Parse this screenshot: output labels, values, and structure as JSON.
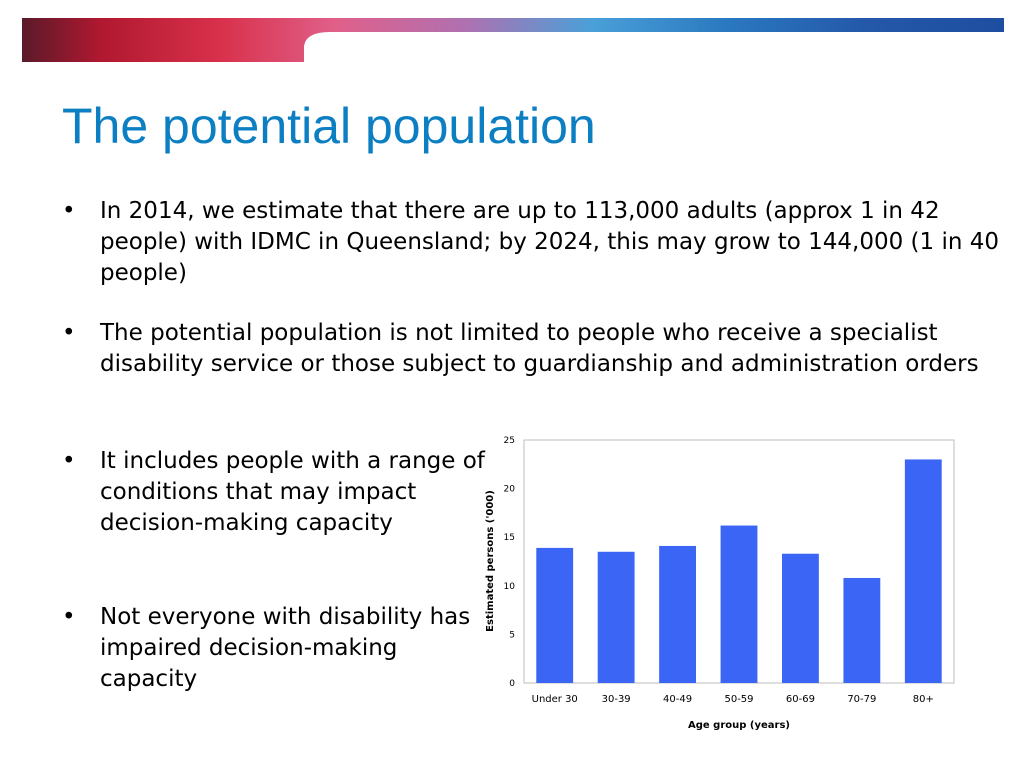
{
  "slide": {
    "title": "The potential population",
    "bullets": [
      {
        "marker": "•",
        "text": "In 2014, we estimate that there are up to 113,000 adults (approx 1 in 42 people) with IDMC in Queensland; by 2024, this may grow to 144,000 (1 in 40 people)"
      },
      {
        "marker": "•",
        "text": "The potential population is not limited to people who receive a specialist disability service or those subject to guardianship and administration orders"
      },
      {
        "marker": "•",
        "text": "It includes people with a range of conditions that may impact decision-making capacity"
      },
      {
        "marker": "•",
        "text": "Not everyone with disability has impaired decision-making capacity"
      }
    ]
  },
  "theme": {
    "title_color": "#0c7fc3",
    "bar_color": "#3b66f5"
  },
  "chart_data": {
    "type": "bar",
    "title": "",
    "xlabel": "Age group (years)",
    "ylabel": "Estimated persons ('000)",
    "categories": [
      "Under 30",
      "30-39",
      "40-49",
      "50-59",
      "60-69",
      "70-79",
      "80+"
    ],
    "values": [
      13.9,
      13.5,
      14.1,
      16.2,
      13.3,
      10.8,
      23.0
    ],
    "ylim": [
      0,
      25
    ],
    "yticks": [
      0,
      5,
      10,
      15,
      20,
      25
    ],
    "grid": false,
    "legend": "none"
  }
}
